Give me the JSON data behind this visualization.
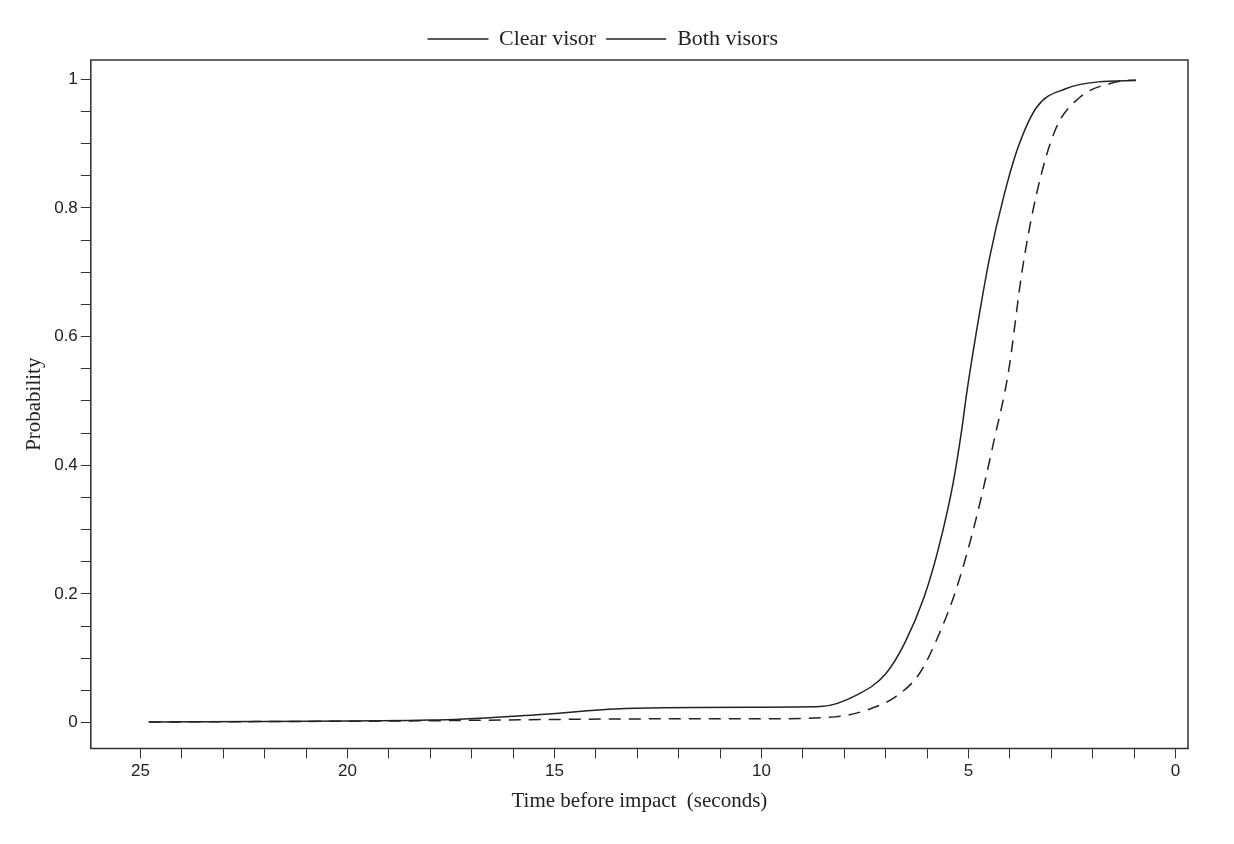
{
  "chart_data": {
    "type": "line",
    "xlabel": "Time before impact  (seconds)",
    "ylabel": "Probability",
    "xlim": [
      26.2,
      -0.3
    ],
    "ylim": [
      -0.04,
      1.03
    ],
    "xticks": [
      0,
      {
        "value": 1,
        "label": null
      },
      {
        "value": 2,
        "label": null
      },
      {
        "value": 3,
        "label": null
      },
      {
        "value": 4,
        "label": null
      },
      5,
      {
        "value": 6,
        "label": null
      },
      {
        "value": 7,
        "label": null
      },
      {
        "value": 8,
        "label": null
      },
      {
        "value": 9,
        "label": null
      },
      10,
      {
        "value": 11,
        "label": null
      },
      {
        "value": 12,
        "label": null
      },
      {
        "value": 13,
        "label": null
      },
      {
        "value": 14,
        "label": null
      },
      15,
      {
        "value": 16,
        "label": null
      },
      {
        "value": 17,
        "label": null
      },
      {
        "value": 18,
        "label": null
      },
      {
        "value": 19,
        "label": null
      },
      20,
      {
        "value": 21,
        "label": null
      },
      {
        "value": 22,
        "label": null
      },
      {
        "value": 23,
        "label": null
      },
      {
        "value": 24,
        "label": null
      },
      25
    ],
    "yticks": [
      0,
      {
        "value": 0.05,
        "label": null
      },
      {
        "value": 0.1,
        "label": null
      },
      {
        "value": 0.15,
        "label": null
      },
      0.2,
      {
        "value": 0.25,
        "label": null
      },
      {
        "value": 0.3,
        "label": null
      },
      {
        "value": 0.35,
        "label": null
      },
      0.4,
      {
        "value": 0.45,
        "label": null
      },
      {
        "value": 0.5,
        "label": null
      },
      {
        "value": 0.55,
        "label": null
      },
      0.6,
      {
        "value": 0.65,
        "label": null
      },
      {
        "value": 0.7,
        "label": null
      },
      {
        "value": 0.75,
        "label": null
      },
      0.8,
      {
        "value": 0.85,
        "label": null
      },
      {
        "value": 0.9,
        "label": null
      },
      {
        "value": 0.95,
        "label": null
      },
      1
    ],
    "grid": false,
    "legend": "top",
    "marker": "none",
    "series": [
      {
        "name": "Clear visor",
        "color": "#222222",
        "line_style": "solid",
        "x": [
          24.8,
          22,
          18,
          15.5,
          13.3,
          10.05,
          8.58,
          7.67,
          7.0,
          6.54,
          6.08,
          5.75,
          5.38,
          5.17,
          5.05,
          4.83,
          4.5,
          4.15,
          3.8,
          3.35,
          2.67,
          1.87,
          0.96
        ],
        "values": [
          0.001,
          0.002,
          0.004,
          0.012,
          0.022,
          0.024,
          0.025,
          0.044,
          0.076,
          0.124,
          0.194,
          0.265,
          0.37,
          0.453,
          0.51,
          0.6,
          0.72,
          0.818,
          0.895,
          0.957,
          0.985,
          0.996,
          0.998
        ]
      },
      {
        "name": "Both visors",
        "color": "#222222",
        "line_style": "dashed",
        "x": [
          24.8,
          18,
          15,
          12,
          10.05,
          8.23,
          7.44,
          6.75,
          6.19,
          5.75,
          5.29,
          4.83,
          4.38,
          4.04,
          3.7,
          3.35,
          2.9,
          2.33,
          1.42,
          0.96
        ],
        "values": [
          0.001,
          0.003,
          0.005,
          0.006,
          0.006,
          0.009,
          0.02,
          0.041,
          0.076,
          0.132,
          0.209,
          0.314,
          0.44,
          0.544,
          0.705,
          0.824,
          0.922,
          0.971,
          0.996,
          0.999
        ]
      }
    ]
  }
}
